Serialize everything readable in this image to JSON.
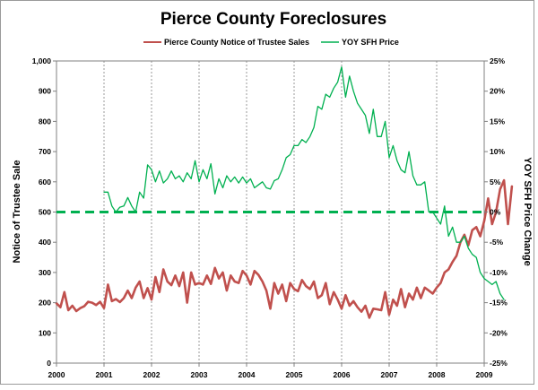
{
  "chart_data": {
    "type": "line",
    "title": "Pierce County Foreclosures",
    "ylabel": "Notice of Trustee Sale",
    "y2label": "YOY SFH Price Change",
    "ylim": [
      0,
      1000
    ],
    "y2lim": [
      -25,
      25
    ],
    "xlim": [
      2000,
      2009
    ],
    "yticks": [
      "0",
      "100",
      "200",
      "300",
      "400",
      "500",
      "600",
      "700",
      "800",
      "900",
      "1,000"
    ],
    "y2ticks": [
      "-25%",
      "-20%",
      "-15%",
      "-10%",
      "-5%",
      "0%",
      "5%",
      "10%",
      "15%",
      "20%",
      "25%"
    ],
    "xticks": [
      "2000",
      "2001",
      "2002",
      "2003",
      "2004",
      "2005",
      "2006",
      "2007",
      "2008",
      "2009"
    ],
    "grid": "vertical dotted lines at year ticks",
    "legend_position": "top-center",
    "reference_line": {
      "axis": "y2",
      "value": 0,
      "color": "#00b050",
      "style": "dashed"
    },
    "series": [
      {
        "name": "Pierce County Notice of Trustee Sales",
        "axis": "left",
        "color": "#c0504d",
        "x_start": 2000,
        "step": 0.0833333,
        "values": [
          198,
          185,
          235,
          175,
          190,
          172,
          182,
          188,
          203,
          200,
          192,
          203,
          182,
          260,
          205,
          212,
          202,
          215,
          240,
          215,
          250,
          270,
          215,
          248,
          210,
          285,
          235,
          310,
          270,
          258,
          290,
          255,
          300,
          200,
          300,
          260,
          265,
          260,
          290,
          262,
          315,
          280,
          300,
          240,
          290,
          270,
          265,
          305,
          290,
          260,
          305,
          292,
          270,
          240,
          180,
          265,
          230,
          260,
          205,
          265,
          245,
          238,
          275,
          255,
          245,
          270,
          215,
          225,
          265,
          195,
          235,
          210,
          180,
          225,
          190,
          205,
          185,
          170,
          190,
          150,
          180,
          178,
          175,
          235,
          160,
          210,
          190,
          245,
          185,
          230,
          210,
          250,
          215,
          250,
          240,
          230,
          250,
          265,
          300,
          310,
          335,
          355,
          400,
          425,
          390,
          440,
          450,
          420,
          470,
          545,
          460,
          500,
          575,
          605,
          460,
          585
        ]
      },
      {
        "name": "YOY SFH Price",
        "axis": "right",
        "color": "#00b050",
        "x_start": 2001,
        "step": 0.0833333,
        "values": [
          3.3,
          3.3,
          1.0,
          0.0,
          0.8,
          1.0,
          2.4,
          1.0,
          0.0,
          3.3,
          2.3,
          7.8,
          7.0,
          5.0,
          6.8,
          4.8,
          5.5,
          6.8,
          5.5,
          6.0,
          5.0,
          6.5,
          5.5,
          8.5,
          5.0,
          7.0,
          5.5,
          8.0,
          3.0,
          5.5,
          4.0,
          6.0,
          5.0,
          5.8,
          4.8,
          5.8,
          4.8,
          5.5,
          4.0,
          4.5,
          5.0,
          4.0,
          3.8,
          5.2,
          5.5,
          7.0,
          9.0,
          9.5,
          11.0,
          11.0,
          12.0,
          11.5,
          12.5,
          14.0,
          17.5,
          17.0,
          19.5,
          19.0,
          20.5,
          21.5,
          24.0,
          19.0,
          22.5,
          20.0,
          18.0,
          17.0,
          16.0,
          13.0,
          17.0,
          12.5,
          12.5,
          15.0,
          9.0,
          11.0,
          8.5,
          7.0,
          6.5,
          10.0,
          6.0,
          4.5,
          4.5,
          5.0,
          0.0,
          0.0,
          -1.0,
          -2.0,
          1.0,
          -4.0,
          -2.5,
          -5.0,
          -5.0,
          -4.0,
          -6.0,
          -7.0,
          -7.5,
          -10.0,
          -11.0,
          -11.5,
          -12.0,
          -11.5,
          -13.5,
          -14.5
        ]
      }
    ]
  }
}
